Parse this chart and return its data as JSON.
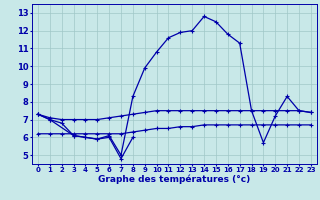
{
  "hours": [
    0,
    1,
    2,
    3,
    4,
    5,
    6,
    7,
    8,
    9,
    10,
    11,
    12,
    13,
    14,
    15,
    16,
    17,
    18,
    19,
    20,
    21,
    22,
    23
  ],
  "series_main": [
    7.3,
    7.0,
    6.8,
    6.1,
    6.0,
    5.9,
    6.1,
    5.0,
    8.3,
    9.9,
    10.8,
    11.6,
    11.9,
    12.0,
    12.8,
    12.5,
    11.8,
    11.3,
    7.5,
    5.7,
    7.2,
    8.3,
    7.5,
    7.4
  ],
  "series_upper": [
    7.3,
    7.1,
    7.0,
    7.0,
    7.0,
    7.0,
    7.1,
    7.2,
    7.3,
    7.4,
    7.5,
    7.5,
    7.5,
    7.5,
    7.5,
    7.5,
    7.5,
    7.5,
    7.5,
    7.5,
    7.5,
    7.5,
    7.5,
    7.4
  ],
  "series_lower": [
    6.2,
    6.2,
    6.2,
    6.2,
    6.2,
    6.2,
    6.2,
    6.2,
    6.3,
    6.4,
    6.5,
    6.5,
    6.6,
    6.6,
    6.7,
    6.7,
    6.7,
    6.7,
    6.7,
    6.7,
    6.7,
    6.7,
    6.7,
    6.7
  ],
  "series_low_x": [
    0,
    1,
    3,
    4,
    5,
    6,
    7,
    8
  ],
  "series_low_y": [
    7.3,
    7.0,
    6.1,
    6.0,
    5.9,
    6.0,
    4.8,
    6.0
  ],
  "bg_color": "#c8e8e8",
  "line_color": "#0000aa",
  "grid_color": "#a0c8c8",
  "xlabel": "Graphe des températures (°c)",
  "ylim": [
    4.5,
    13.5
  ],
  "xlim": [
    -0.5,
    23.5
  ],
  "yticks": [
    5,
    6,
    7,
    8,
    9,
    10,
    11,
    12,
    13
  ],
  "xticks": [
    0,
    1,
    2,
    3,
    4,
    5,
    6,
    7,
    8,
    9,
    10,
    11,
    12,
    13,
    14,
    15,
    16,
    17,
    18,
    19,
    20,
    21,
    22,
    23
  ]
}
